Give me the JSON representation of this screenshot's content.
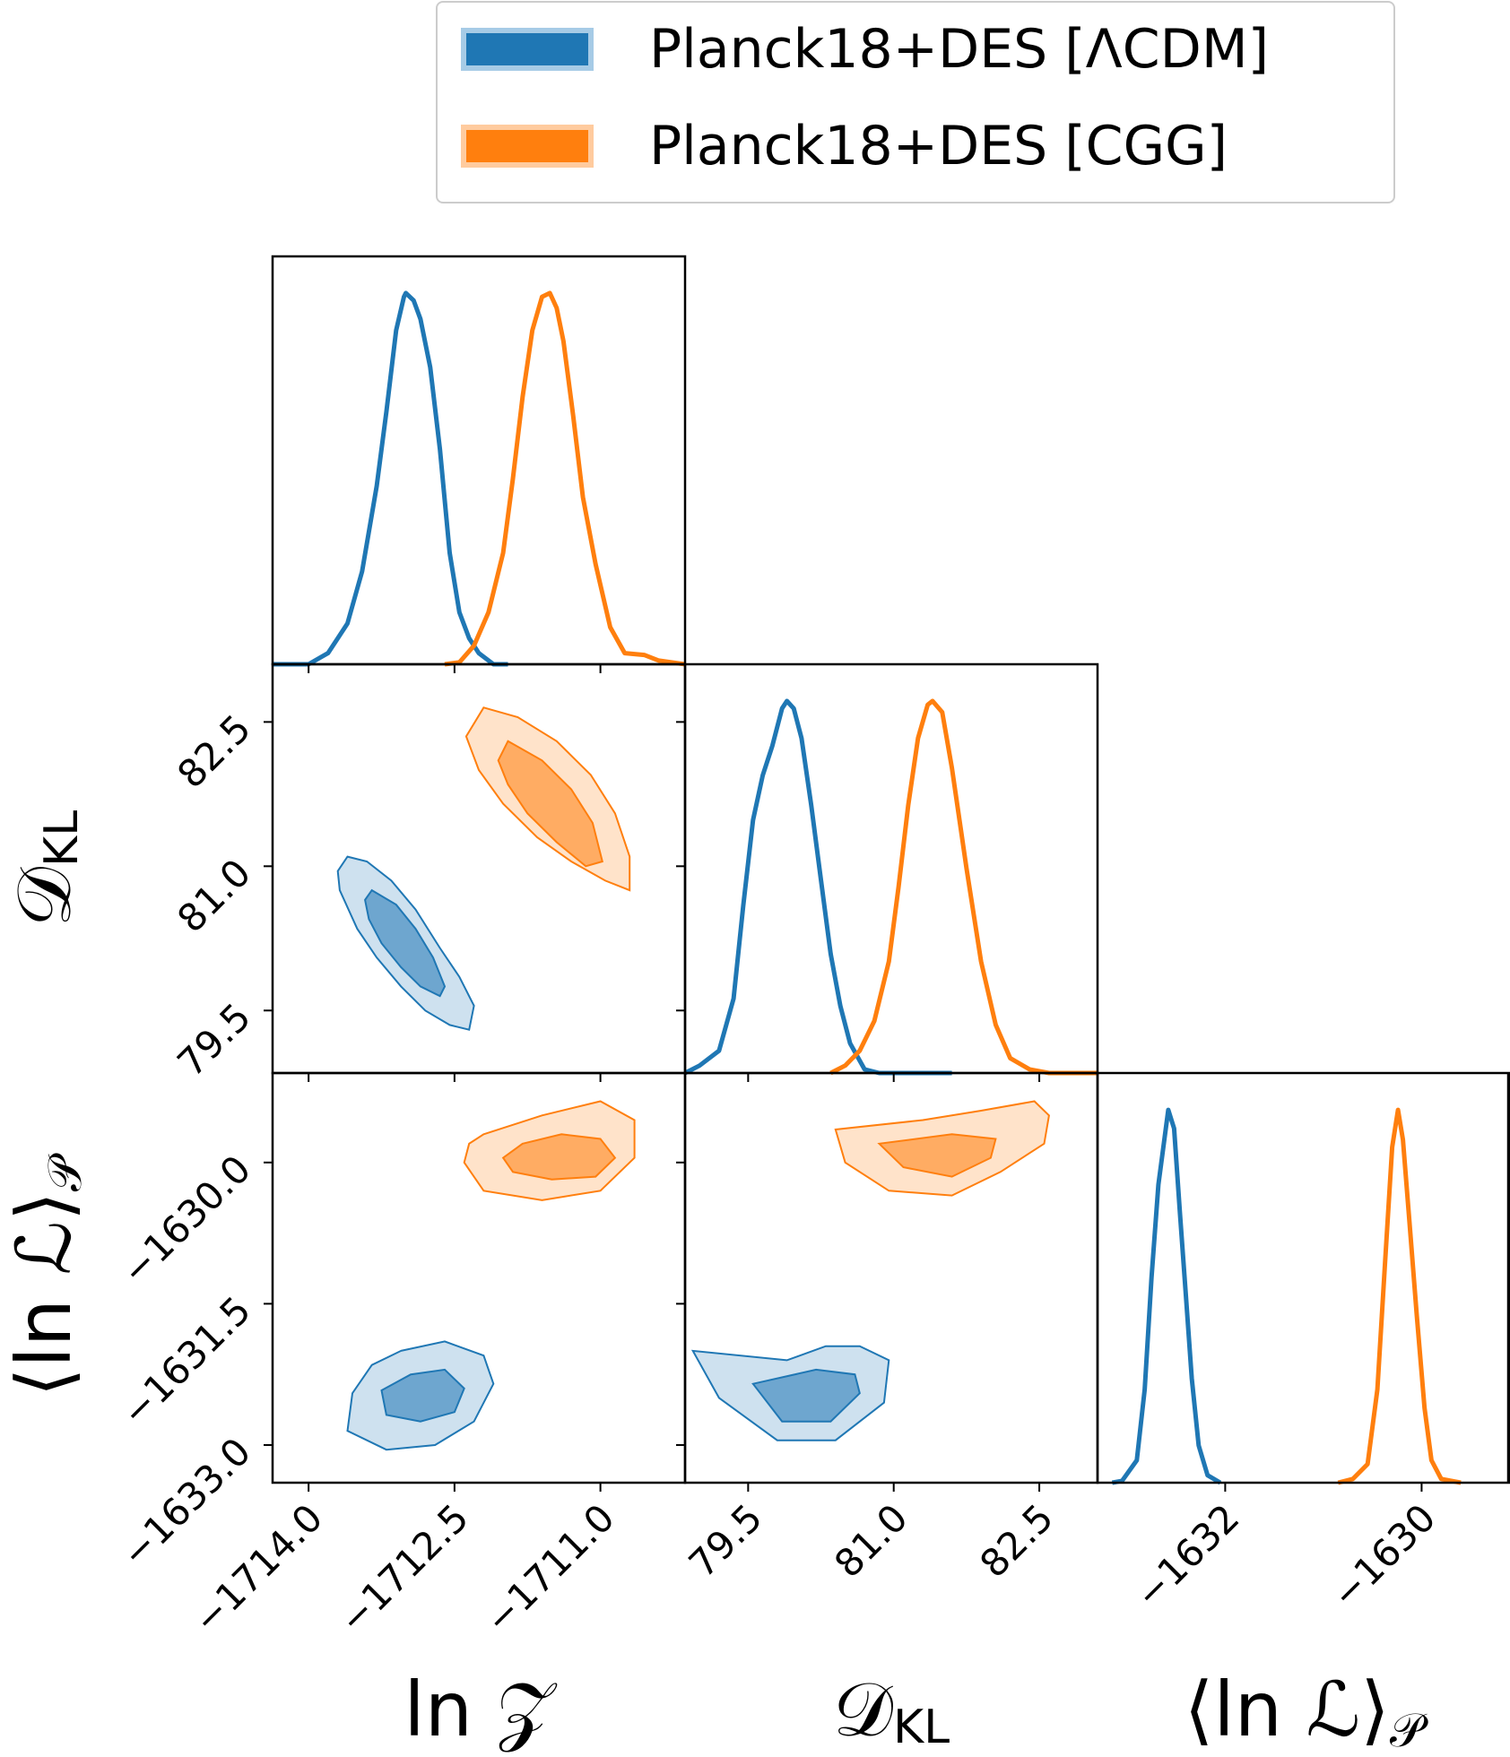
{
  "chart_data": {
    "type": "corner",
    "colors": {
      "lcdm": "#1f77b4",
      "cgg": "#ff7f0e"
    },
    "legend": {
      "placement": "top-right",
      "entries": [
        {
          "label": "Planck18+DES [ΛCDM]",
          "color": "#1f77b4"
        },
        {
          "label": "Planck18+DES [CGG]",
          "color": "#ff7f0e"
        }
      ]
    },
    "params": [
      {
        "key": "lnZ",
        "label": "ln 𝒵",
        "lim": [
          -1714.37,
          -1710.13
        ],
        "ticks": [
          -1714.0,
          -1712.5,
          -1711.0
        ],
        "tick_labels": [
          "−1714.0",
          "−1712.5",
          "−1711.0"
        ]
      },
      {
        "key": "DKL",
        "label": "𝒟KL",
        "label_main": "𝒟",
        "label_sub": "KL",
        "lim": [
          78.85,
          83.1
        ],
        "ticks": [
          79.5,
          81.0,
          82.5
        ],
        "tick_labels": [
          "79.5",
          "81.0",
          "82.5"
        ]
      },
      {
        "key": "lnL",
        "label": "⟨ln ℒ⟩𝒫",
        "label_main": "⟨ln ℒ⟩",
        "label_sub": "𝒫",
        "lim": [
          -1633.4,
          -1629.05
        ],
        "ticks": [
          -1630.0,
          -1631.5,
          -1633.0
        ],
        "tick_labels": [
          "−1630.0",
          "−1631.5",
          "−1633.0"
        ]
      }
    ],
    "diag_x_ticks_lnL": [
      -1632,
      -1630
    ],
    "diag_x_tick_labels_lnL": [
      "−1632",
      "−1630"
    ],
    "x_axis_labels": [
      "ln 𝒵",
      "𝒟KL",
      "⟨ln ℒ⟩𝒫"
    ],
    "y_axis_labels": [
      "𝒟KL",
      "⟨ln ℒ⟩𝒫"
    ],
    "diag_lim_lnL": [
      -1633.3,
      -1629.1
    ],
    "marginals": {
      "lnZ": {
        "lcdm": [
          [
            -1714.37,
            0.0
          ],
          [
            -1714.2,
            0.0
          ],
          [
            -1714.0,
            0.0
          ],
          [
            -1713.8,
            0.03
          ],
          [
            -1713.6,
            0.11
          ],
          [
            -1713.45,
            0.25
          ],
          [
            -1713.3,
            0.48
          ],
          [
            -1713.2,
            0.68
          ],
          [
            -1713.1,
            0.9
          ],
          [
            -1713.02,
            0.99
          ],
          [
            -1713.0,
            1.0
          ],
          [
            -1712.92,
            0.98
          ],
          [
            -1712.85,
            0.93
          ],
          [
            -1712.75,
            0.8
          ],
          [
            -1712.65,
            0.58
          ],
          [
            -1712.55,
            0.3
          ],
          [
            -1712.45,
            0.14
          ],
          [
            -1712.35,
            0.07
          ],
          [
            -1712.25,
            0.03
          ],
          [
            -1712.1,
            0.0
          ],
          [
            -1711.95,
            0.0
          ]
        ],
        "cgg": [
          [
            -1712.6,
            0.0
          ],
          [
            -1712.45,
            0.005
          ],
          [
            -1712.3,
            0.05
          ],
          [
            -1712.15,
            0.14
          ],
          [
            -1712.0,
            0.3
          ],
          [
            -1711.9,
            0.5
          ],
          [
            -1711.8,
            0.72
          ],
          [
            -1711.7,
            0.9
          ],
          [
            -1711.6,
            0.99
          ],
          [
            -1711.52,
            1.0
          ],
          [
            -1711.45,
            0.96
          ],
          [
            -1711.38,
            0.87
          ],
          [
            -1711.28,
            0.67
          ],
          [
            -1711.18,
            0.45
          ],
          [
            -1711.05,
            0.27
          ],
          [
            -1710.9,
            0.1
          ],
          [
            -1710.75,
            0.03
          ],
          [
            -1710.55,
            0.025
          ],
          [
            -1710.4,
            0.01
          ],
          [
            -1710.13,
            0.0
          ]
        ]
      },
      "DKL": {
        "lcdm": [
          [
            78.85,
            0.0
          ],
          [
            79.0,
            0.02
          ],
          [
            79.2,
            0.06
          ],
          [
            79.35,
            0.2
          ],
          [
            79.45,
            0.45
          ],
          [
            79.55,
            0.68
          ],
          [
            79.65,
            0.8
          ],
          [
            79.75,
            0.88
          ],
          [
            79.85,
            0.98
          ],
          [
            79.9,
            1.0
          ],
          [
            79.97,
            0.98
          ],
          [
            80.05,
            0.9
          ],
          [
            80.15,
            0.72
          ],
          [
            80.25,
            0.52
          ],
          [
            80.35,
            0.32
          ],
          [
            80.45,
            0.18
          ],
          [
            80.55,
            0.08
          ],
          [
            80.7,
            0.01
          ],
          [
            80.85,
            0.0
          ],
          [
            81.0,
            0.0
          ],
          [
            81.6,
            0.0
          ]
        ],
        "cgg": [
          [
            80.35,
            0.0
          ],
          [
            80.5,
            0.02
          ],
          [
            80.65,
            0.06
          ],
          [
            80.8,
            0.14
          ],
          [
            80.95,
            0.3
          ],
          [
            81.05,
            0.5
          ],
          [
            81.15,
            0.72
          ],
          [
            81.25,
            0.9
          ],
          [
            81.35,
            0.99
          ],
          [
            81.4,
            1.0
          ],
          [
            81.5,
            0.97
          ],
          [
            81.6,
            0.82
          ],
          [
            81.75,
            0.55
          ],
          [
            81.9,
            0.3
          ],
          [
            82.05,
            0.13
          ],
          [
            82.2,
            0.04
          ],
          [
            82.4,
            0.01
          ],
          [
            82.6,
            0.0
          ],
          [
            83.1,
            0.0
          ]
        ]
      },
      "lnL": {
        "lcdm": [
          [
            -1633.15,
            0.0
          ],
          [
            -1633.05,
            0.005
          ],
          [
            -1632.9,
            0.06
          ],
          [
            -1632.82,
            0.25
          ],
          [
            -1632.75,
            0.55
          ],
          [
            -1632.68,
            0.8
          ],
          [
            -1632.62,
            0.92
          ],
          [
            -1632.58,
            1.0
          ],
          [
            -1632.52,
            0.95
          ],
          [
            -1632.46,
            0.72
          ],
          [
            -1632.4,
            0.5
          ],
          [
            -1632.34,
            0.28
          ],
          [
            -1632.27,
            0.1
          ],
          [
            -1632.18,
            0.02
          ],
          [
            -1632.05,
            0.0
          ]
        ],
        "cgg": [
          [
            -1630.85,
            0.0
          ],
          [
            -1630.7,
            0.01
          ],
          [
            -1630.55,
            0.05
          ],
          [
            -1630.45,
            0.25
          ],
          [
            -1630.37,
            0.6
          ],
          [
            -1630.3,
            0.9
          ],
          [
            -1630.24,
            1.0
          ],
          [
            -1630.19,
            0.92
          ],
          [
            -1630.13,
            0.72
          ],
          [
            -1630.05,
            0.45
          ],
          [
            -1629.97,
            0.2
          ],
          [
            -1629.9,
            0.06
          ],
          [
            -1629.8,
            0.01
          ],
          [
            -1629.6,
            0.0
          ]
        ]
      }
    },
    "contours": {
      "lnZ_DKL": {
        "lcdm": {
          "outer": [
            [
              -1713.6,
              81.1
            ],
            [
              -1713.4,
              81.05
            ],
            [
              -1713.15,
              80.85
            ],
            [
              -1712.9,
              80.55
            ],
            [
              -1712.65,
              80.15
            ],
            [
              -1712.45,
              79.85
            ],
            [
              -1712.3,
              79.55
            ],
            [
              -1712.35,
              79.3
            ],
            [
              -1712.55,
              79.35
            ],
            [
              -1712.8,
              79.5
            ],
            [
              -1713.05,
              79.75
            ],
            [
              -1713.3,
              80.05
            ],
            [
              -1713.5,
              80.35
            ],
            [
              -1713.68,
              80.75
            ],
            [
              -1713.7,
              80.95
            ]
          ],
          "inner": [
            [
              -1713.35,
              80.75
            ],
            [
              -1713.1,
              80.6
            ],
            [
              -1712.9,
              80.35
            ],
            [
              -1712.72,
              80.05
            ],
            [
              -1712.6,
              79.75
            ],
            [
              -1712.65,
              79.65
            ],
            [
              -1712.85,
              79.75
            ],
            [
              -1713.05,
              79.95
            ],
            [
              -1713.25,
              80.2
            ],
            [
              -1713.38,
              80.45
            ],
            [
              -1713.42,
              80.65
            ]
          ]
        },
        "cgg": {
          "outer": [
            [
              -1712.2,
              82.65
            ],
            [
              -1711.85,
              82.55
            ],
            [
              -1711.45,
              82.3
            ],
            [
              -1711.1,
              81.95
            ],
            [
              -1710.85,
              81.55
            ],
            [
              -1710.7,
              81.1
            ],
            [
              -1710.7,
              80.75
            ],
            [
              -1710.95,
              80.85
            ],
            [
              -1711.3,
              81.05
            ],
            [
              -1711.65,
              81.3
            ],
            [
              -1712.0,
              81.65
            ],
            [
              -1712.25,
              82.0
            ],
            [
              -1712.38,
              82.35
            ]
          ],
          "inner": [
            [
              -1711.95,
              82.3
            ],
            [
              -1711.6,
              82.1
            ],
            [
              -1711.3,
              81.8
            ],
            [
              -1711.08,
              81.45
            ],
            [
              -1710.98,
              81.05
            ],
            [
              -1711.15,
              81.0
            ],
            [
              -1711.45,
              81.25
            ],
            [
              -1711.75,
              81.55
            ],
            [
              -1711.95,
              81.85
            ],
            [
              -1712.05,
              82.1
            ]
          ]
        }
      },
      "lnZ_lnL": {
        "lcdm": {
          "outer": [
            [
              -1713.05,
              -1632.0
            ],
            [
              -1712.6,
              -1631.9
            ],
            [
              -1712.2,
              -1632.05
            ],
            [
              -1712.1,
              -1632.35
            ],
            [
              -1712.3,
              -1632.75
            ],
            [
              -1712.7,
              -1633.0
            ],
            [
              -1713.2,
              -1633.05
            ],
            [
              -1713.6,
              -1632.85
            ],
            [
              -1713.55,
              -1632.45
            ],
            [
              -1713.35,
              -1632.15
            ]
          ],
          "inner": [
            [
              -1712.95,
              -1632.25
            ],
            [
              -1712.6,
              -1632.2
            ],
            [
              -1712.4,
              -1632.4
            ],
            [
              -1712.5,
              -1632.65
            ],
            [
              -1712.85,
              -1632.75
            ],
            [
              -1713.2,
              -1632.68
            ],
            [
              -1713.25,
              -1632.42
            ]
          ]
        },
        "cgg": {
          "outer": [
            [
              -1712.2,
              -1629.7
            ],
            [
              -1711.6,
              -1629.5
            ],
            [
              -1711.0,
              -1629.35
            ],
            [
              -1710.65,
              -1629.55
            ],
            [
              -1710.65,
              -1629.95
            ],
            [
              -1711.0,
              -1630.3
            ],
            [
              -1711.6,
              -1630.4
            ],
            [
              -1712.2,
              -1630.3
            ],
            [
              -1712.4,
              -1630.0
            ],
            [
              -1712.35,
              -1629.8
            ]
          ],
          "inner": [
            [
              -1711.8,
              -1629.8
            ],
            [
              -1711.4,
              -1629.7
            ],
            [
              -1711.0,
              -1629.75
            ],
            [
              -1710.85,
              -1629.95
            ],
            [
              -1711.05,
              -1630.15
            ],
            [
              -1711.5,
              -1630.18
            ],
            [
              -1711.9,
              -1630.1
            ],
            [
              -1712.0,
              -1629.95
            ]
          ]
        }
      },
      "DKL_lnL": {
        "lcdm": {
          "outer": [
            [
              -1632.0,
              78.93
            ],
            [
              -1632.5,
              79.2
            ],
            [
              -1632.95,
              79.8
            ],
            [
              -1632.95,
              80.4
            ],
            [
              -1632.55,
              80.9
            ],
            [
              -1632.1,
              80.95
            ],
            [
              -1631.95,
              80.65
            ],
            [
              -1631.95,
              80.3
            ],
            [
              -1632.1,
              79.9
            ]
          ],
          "inner": [
            [
              -1632.35,
              79.55
            ],
            [
              -1632.75,
              79.85
            ],
            [
              -1632.75,
              80.35
            ],
            [
              -1632.45,
              80.65
            ],
            [
              -1632.25,
              80.6
            ],
            [
              -1632.2,
              80.2
            ]
          ]
        },
        "cgg": {
          "outer": [
            [
              -1629.65,
              80.4
            ],
            [
              -1630.0,
              80.5
            ],
            [
              -1630.3,
              80.95
            ],
            [
              -1630.35,
              81.6
            ],
            [
              -1630.1,
              82.1
            ],
            [
              -1629.8,
              82.55
            ],
            [
              -1629.5,
              82.6
            ],
            [
              -1629.35,
              82.45
            ],
            [
              -1629.45,
              81.9
            ],
            [
              -1629.55,
              81.3
            ]
          ],
          "inner": [
            [
              -1629.8,
              80.85
            ],
            [
              -1630.05,
              81.1
            ],
            [
              -1630.15,
              81.6
            ],
            [
              -1629.95,
              82.0
            ],
            [
              -1629.75,
              82.05
            ],
            [
              -1629.7,
              81.6
            ]
          ]
        }
      }
    }
  }
}
